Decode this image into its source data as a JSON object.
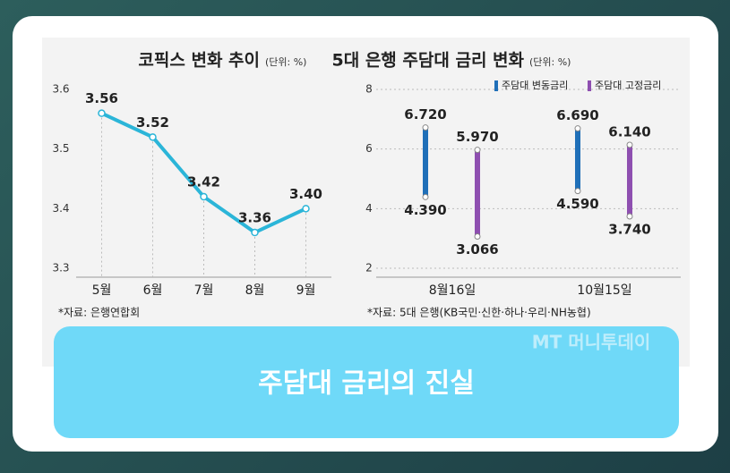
{
  "chart_data": [
    {
      "type": "line",
      "title": "코픽스 변화 추이",
      "unit": "(단위: %)",
      "categories": [
        "5월",
        "6월",
        "7월",
        "8월",
        "9월"
      ],
      "values": [
        3.56,
        3.52,
        3.42,
        3.36,
        3.4
      ],
      "value_labels": [
        "3.56",
        "3.52",
        "3.42",
        "3.36",
        "3.40"
      ],
      "color": "#2bb5d8",
      "ylim": [
        3.3,
        3.6
      ],
      "yticks": [
        3.3,
        3.4,
        3.5,
        3.6
      ],
      "source": "*자료: 은행연합회"
    },
    {
      "type": "range",
      "title": "5대 은행 주담대 금리 변화",
      "unit": "(단위: %)",
      "categories": [
        "8월16일",
        "10월15일"
      ],
      "series": [
        {
          "name": "주담대 변동금리",
          "color": "#1f6fb8",
          "low": [
            4.39,
            4.59
          ],
          "high": [
            6.72,
            6.69
          ],
          "low_labels": [
            "4.390",
            "4.590"
          ],
          "high_labels": [
            "6.720",
            "6.690"
          ]
        },
        {
          "name": "주담대 고정금리",
          "color": "#8e4fb0",
          "low": [
            3.066,
            3.74
          ],
          "high": [
            5.97,
            6.14
          ],
          "low_labels": [
            "3.066",
            "3.740"
          ],
          "high_labels": [
            "5.970",
            "6.140"
          ]
        }
      ],
      "ylim": [
        2,
        8
      ],
      "yticks": [
        2,
        4,
        6,
        8
      ],
      "grid": true,
      "legend": "top-right",
      "source": "*자료: 5대 은행(KB국민·신한·하나·우리·NH농협)"
    }
  ],
  "watermark": "MT 머니투데이",
  "caption": "주담대 금리의 진실"
}
